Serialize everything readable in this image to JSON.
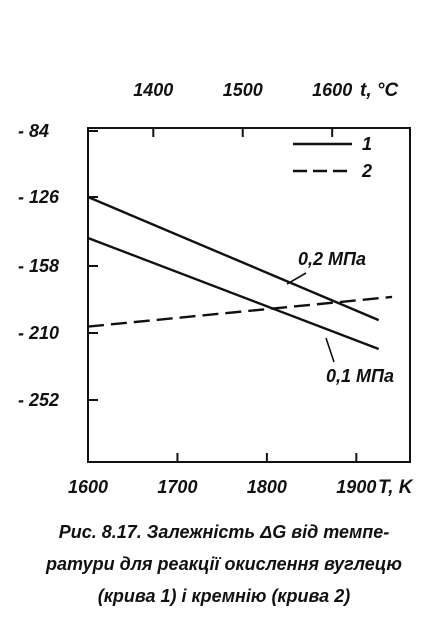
{
  "chart_data": {
    "type": "line",
    "title": "",
    "x_bottom": {
      "label": "T, K",
      "ticks": [
        1600,
        1700,
        1800,
        1900
      ],
      "range": [
        1600,
        1960
      ]
    },
    "x_top": {
      "label": "t, °C",
      "ticks": [
        1400,
        1500,
        1600
      ]
    },
    "y": {
      "ticks": [
        -84,
        -126,
        -158,
        -210,
        -252
      ],
      "tick_labels": [
        "- 84",
        "- 126",
        "- 158",
        "- 210",
        "- 252"
      ]
    },
    "grid": false,
    "legend": {
      "position": "top-right",
      "entries": [
        {
          "label": "1",
          "style": "solid"
        },
        {
          "label": "2",
          "style": "dashed"
        }
      ]
    },
    "series": [
      {
        "legend_ref": "1",
        "annotation": "0,2 МПа",
        "style": "solid",
        "x": [
          1600,
          1925
        ],
        "y": [
          -126,
          -200
        ]
      },
      {
        "legend_ref": "1",
        "annotation": "0,1 МПа",
        "style": "solid",
        "x": [
          1600,
          1925
        ],
        "y": [
          -145,
          -220
        ]
      },
      {
        "legend_ref": "2",
        "style": "dashed",
        "x": [
          1600,
          1940
        ],
        "y": [
          -205,
          -182
        ]
      }
    ]
  },
  "caption": {
    "lines": [
      "Рис. 8.17. Залежність ΔG від темпе-",
      "ратури для реакції окислення вуглецю",
      "(крива 1) і кремнію  (крива 2)"
    ]
  }
}
